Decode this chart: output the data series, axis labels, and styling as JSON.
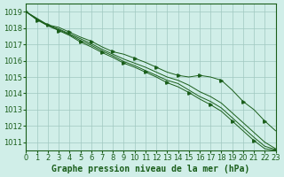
{
  "bg_color": "#d0eee8",
  "grid_color": "#a0c8c0",
  "line_color": "#1a5e1a",
  "marker_color": "#1a5e1a",
  "xlabel": "Graphe pression niveau de la mer (hPa)",
  "xlabel_fontsize": 7,
  "xlim": [
    0,
    23
  ],
  "ylim": [
    1010.5,
    1019.5
  ],
  "yticks": [
    1011,
    1012,
    1013,
    1014,
    1015,
    1016,
    1017,
    1018,
    1019
  ],
  "xticks": [
    0,
    1,
    2,
    3,
    4,
    5,
    6,
    7,
    8,
    9,
    10,
    11,
    12,
    13,
    14,
    15,
    16,
    17,
    18,
    19,
    20,
    21,
    22,
    23
  ],
  "series": [
    [
      1019.0,
      1018.6,
      1018.2,
      1018.05,
      1017.75,
      1017.45,
      1017.2,
      1016.85,
      1016.55,
      1016.4,
      1016.15,
      1015.9,
      1015.6,
      1015.3,
      1015.1,
      1015.0,
      1015.1,
      1015.0,
      1014.8,
      1014.2,
      1013.5,
      1013.0,
      1012.3,
      1011.7
    ],
    [
      1019.0,
      1018.55,
      1018.2,
      1017.95,
      1017.65,
      1017.35,
      1017.05,
      1016.7,
      1016.4,
      1016.1,
      1015.85,
      1015.6,
      1015.3,
      1015.0,
      1014.8,
      1014.5,
      1014.1,
      1013.8,
      1013.4,
      1012.8,
      1012.2,
      1011.6,
      1011.0,
      1010.6
    ],
    [
      1019.0,
      1018.55,
      1018.15,
      1017.9,
      1017.6,
      1017.25,
      1016.95,
      1016.6,
      1016.3,
      1015.95,
      1015.7,
      1015.4,
      1015.1,
      1014.8,
      1014.6,
      1014.2,
      1013.8,
      1013.5,
      1013.1,
      1012.5,
      1011.9,
      1011.3,
      1010.75,
      1010.55
    ],
    [
      1019.0,
      1018.5,
      1018.15,
      1017.85,
      1017.55,
      1017.15,
      1016.85,
      1016.5,
      1016.2,
      1015.85,
      1015.6,
      1015.3,
      1015.0,
      1014.65,
      1014.4,
      1014.05,
      1013.65,
      1013.3,
      1012.9,
      1012.3,
      1011.7,
      1011.1,
      1010.6,
      1010.5
    ]
  ],
  "marker_x_series0": [
    0,
    2,
    4,
    6,
    8,
    10,
    12,
    14,
    16,
    18,
    20,
    22
  ],
  "marker_x_series2": [
    1,
    3,
    5,
    7,
    9,
    11,
    13,
    15,
    17,
    19,
    21,
    23
  ],
  "tick_fontsize": 6.0
}
